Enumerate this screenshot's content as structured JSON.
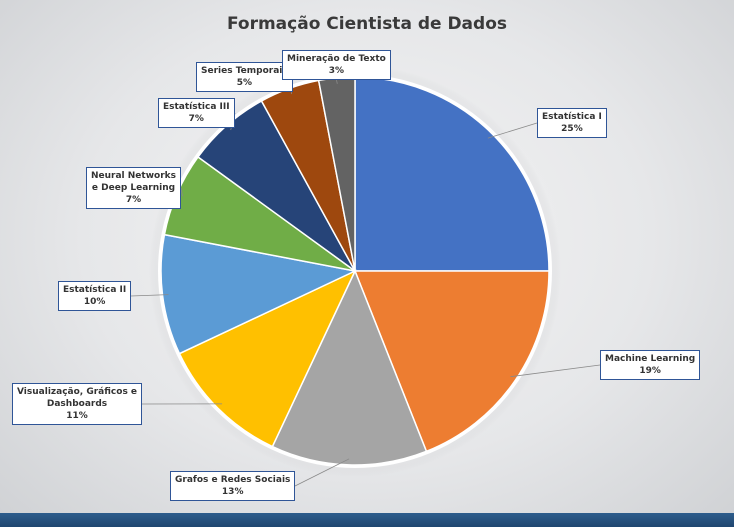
{
  "colors": {
    "background": "#e6e7e9",
    "bottom_bar": "#2e5d8c",
    "callout_border": "#2f5597"
  },
  "chart_data": {
    "type": "pie",
    "title": "Formação Cientista de Dados",
    "start_angle_deg": 0,
    "direction": "clockwise",
    "slices": [
      {
        "label": "Estatística I",
        "value": 25,
        "value_label": "25%",
        "color": "#4472c4"
      },
      {
        "label": "Machine Learning",
        "value": 19,
        "value_label": "19%",
        "color": "#ed7d31"
      },
      {
        "label": "Grafos e Redes Sociais",
        "value": 13,
        "value_label": "13%",
        "color": "#a5a5a5"
      },
      {
        "label": "Visualização, Gráficos e Dashboards",
        "label_lines": [
          "Visualização, Gráficos e",
          "Dashboards"
        ],
        "value": 11,
        "value_label": "11%",
        "color": "#ffc000"
      },
      {
        "label": "Estatística II",
        "value": 10,
        "value_label": "10%",
        "color": "#5b9bd5"
      },
      {
        "label": "Neural Networks e Deep Learning",
        "label_lines": [
          "Neural Networks",
          "e Deep Learning"
        ],
        "value": 7,
        "value_label": "7%",
        "color": "#70ad47"
      },
      {
        "label": "Estatística III",
        "value": 7,
        "value_label": "7%",
        "color": "#264478"
      },
      {
        "label": "Series Temporais",
        "value": 5,
        "value_label": "5%",
        "color": "#9e480e"
      },
      {
        "label": "Mineração de Texto",
        "value": 3,
        "value_label": "3%",
        "color": "#636363"
      }
    ]
  }
}
